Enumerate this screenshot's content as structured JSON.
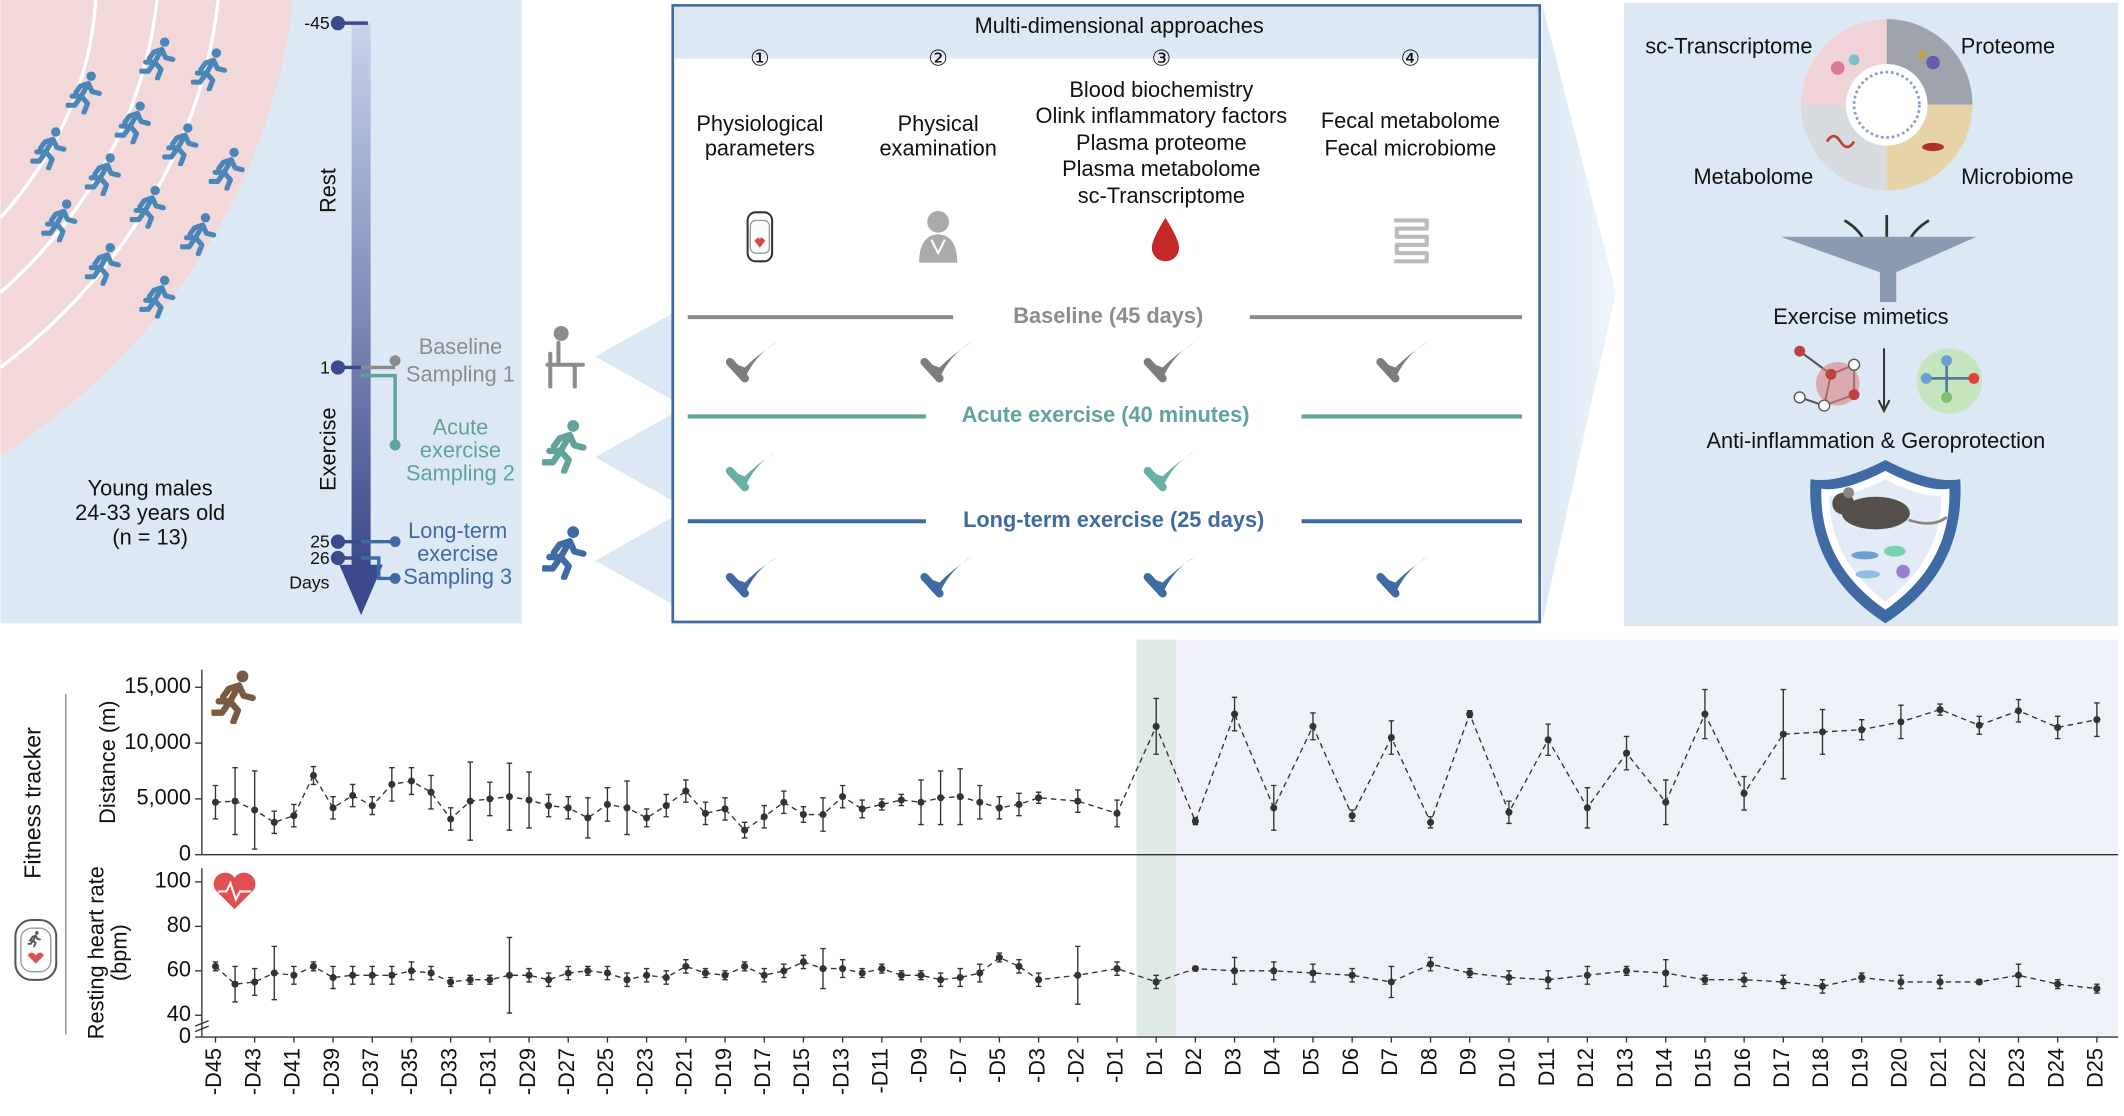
{
  "left_panel": {
    "lines": [
      "Young males",
      "24-33 years old",
      "(n = 13)"
    ]
  },
  "timeline": {
    "ticks": [
      "-45",
      "1",
      "25",
      "26"
    ],
    "unit": "Days",
    "rest": "Rest",
    "exercise": "Exercise",
    "samplings": [
      {
        "lines": [
          "Baseline",
          "Sampling 1"
        ]
      },
      {
        "lines": [
          "Acute",
          "exercise",
          "Sampling 2"
        ]
      },
      {
        "lines": [
          "Long-term",
          "exercise",
          "Sampling 3"
        ]
      }
    ]
  },
  "approaches": {
    "title": "Multi-dimensional approaches",
    "columns": [
      {
        "number": "①",
        "lines": [
          "Physiological",
          "parameters"
        ]
      },
      {
        "number": "②",
        "lines": [
          "Physical",
          "examination"
        ]
      },
      {
        "number": "③",
        "lines": [
          "Blood biochemistry",
          "Olink inflammatory factors",
          "Plasma proteome",
          "Plasma metabolome",
          "sc-Transcriptome"
        ]
      },
      {
        "number": "④",
        "lines": [
          "Fecal metabolome",
          "Fecal microbiome"
        ]
      }
    ],
    "phases": [
      "Baseline (45 days)",
      "Acute exercise (40 minutes)",
      "Long-term exercise (25 days)"
    ]
  },
  "right_panel": {
    "omics": [
      "sc-Transcriptome",
      "Proteome",
      "Metabolome",
      "Microbiome"
    ],
    "mimetics": "Exercise mimetics",
    "outcome": "Anti-inflammation & Geroprotection"
  },
  "fitness_tracker": {
    "label": "Fitness tracker"
  },
  "chart_data": [
    {
      "type": "line",
      "y_label": [
        "Distance (m)"
      ],
      "categories": [
        "-D45",
        null,
        "-D43",
        null,
        "-D41",
        null,
        "-D39",
        null,
        "-D37",
        null,
        "-D35",
        null,
        "-D33",
        null,
        "-D31",
        null,
        "-D29",
        null,
        "-D27",
        null,
        "-D25",
        null,
        "-D23",
        null,
        "-D21",
        null,
        "-D19",
        null,
        "-D17",
        null,
        "-D15",
        null,
        "-D13",
        null,
        "-D11",
        null,
        "-D9",
        null,
        "-D7",
        null,
        "-D5",
        null,
        "-D3",
        "-D2",
        "-D1",
        "D1",
        "D2",
        "D3",
        "D4",
        "D5",
        "D6",
        "D7",
        "D8",
        "D9",
        "D10",
        "D11",
        "D12",
        "D13",
        "D14",
        "D15",
        "D16",
        "D17",
        "D18",
        "D19",
        "D20",
        "D21",
        "D22",
        "D23",
        "D24",
        "D25"
      ],
      "series": [
        {
          "color": "#333333",
          "values": [
            4700,
            4800,
            4000,
            2900,
            3500,
            7100,
            4200,
            5300,
            4400,
            6300,
            6600,
            5600,
            3200,
            4800,
            5000,
            5200,
            4900,
            4400,
            4200,
            3300,
            4500,
            4200,
            3300,
            4400,
            5700,
            3700,
            4100,
            2200,
            3400,
            4700,
            3600,
            3600,
            5200,
            4100,
            4500,
            4900,
            4700,
            5100,
            5200,
            4700,
            4200,
            4500,
            5100,
            4800,
            3700,
            11500,
            3000,
            12600,
            4200,
            11500,
            3500,
            10500,
            2900,
            12600,
            3800,
            10300,
            4200,
            9100,
            4700,
            12600,
            5500,
            10800,
            11000,
            11200,
            11900,
            13000,
            11600,
            12900,
            11400,
            12100
          ],
          "errors": [
            1500,
            3000,
            3500,
            1000,
            1000,
            800,
            1000,
            1000,
            800,
            1500,
            1200,
            1500,
            1000,
            3500,
            1500,
            3000,
            2500,
            1000,
            1000,
            1800,
            1500,
            2400,
            800,
            1000,
            1000,
            1000,
            1000,
            700,
            1000,
            1000,
            700,
            1500,
            1000,
            800,
            500,
            500,
            2000,
            2400,
            2500,
            1500,
            1000,
            1000,
            500,
            1000,
            1200,
            2500,
            300,
            1500,
            2000,
            1200,
            500,
            1500,
            500,
            300,
            1000,
            1400,
            1800,
            1500,
            2000,
            2200,
            1500,
            4000,
            2000,
            900,
            1500,
            500,
            800,
            1000,
            1000,
            1500
          ]
        }
      ],
      "ylim": [
        0,
        15000
      ],
      "yticks": [
        0,
        {
          "value": 5000,
          "label": "5,000"
        },
        {
          "value": 10000,
          "label": "10,000"
        },
        {
          "value": 15000,
          "label": "15,000"
        }
      ]
    },
    {
      "type": "line",
      "y_label": [
        "Resting heart rate",
        "(bpm)"
      ],
      "categories": [
        "-D45",
        null,
        "-D43",
        null,
        "-D41",
        null,
        "-D39",
        null,
        "-D37",
        null,
        "-D35",
        null,
        "-D33",
        null,
        "-D31",
        null,
        "-D29",
        null,
        "-D27",
        null,
        "-D25",
        null,
        "-D23",
        null,
        "-D21",
        null,
        "-D19",
        null,
        "-D17",
        null,
        "-D15",
        null,
        "-D13",
        null,
        "-D11",
        null,
        "-D9",
        null,
        "-D7",
        null,
        "-D5",
        null,
        "-D3",
        "-D2",
        "-D1",
        "D1",
        "D2",
        "D3",
        "D4",
        "D5",
        "D6",
        "D7",
        "D8",
        "D9",
        "D10",
        "D11",
        "D12",
        "D13",
        "D14",
        "D15",
        "D16",
        "D17",
        "D18",
        "D19",
        "D20",
        "D21",
        "D22",
        "D23",
        "D24",
        "D25"
      ],
      "series": [
        {
          "color": "#333333",
          "values": [
            62,
            54,
            55,
            59,
            58,
            62,
            57,
            58,
            58,
            58,
            60,
            59,
            55,
            56,
            56,
            58,
            58,
            56,
            59,
            60,
            59,
            56,
            58,
            57,
            62,
            59,
            58,
            62,
            58,
            60,
            64,
            61,
            61,
            59,
            61,
            58,
            58,
            56,
            57,
            59,
            66,
            62,
            56,
            58,
            61,
            55,
            61,
            60,
            60,
            59,
            58,
            55,
            63,
            59,
            57,
            56,
            58,
            60,
            59,
            56,
            56,
            55,
            53,
            57,
            55,
            55,
            55,
            58,
            54,
            52
          ],
          "errors": [
            2,
            8,
            6,
            12,
            4,
            2,
            5,
            4,
            4,
            4,
            4,
            3,
            2,
            2,
            2,
            17,
            3,
            3,
            3,
            2,
            3,
            3,
            3,
            3,
            3,
            2,
            2,
            2,
            3,
            3,
            3,
            9,
            4,
            2,
            2,
            2,
            2,
            3,
            4,
            4,
            2,
            3,
            3,
            13,
            3,
            3,
            1,
            6,
            4,
            4,
            3,
            7,
            3,
            2,
            3,
            4,
            4,
            2,
            6,
            2,
            3,
            3,
            3,
            2,
            3,
            3,
            1,
            5,
            2,
            2
          ]
        }
      ],
      "ylim": [
        40,
        100
      ],
      "axis_break": true,
      "yticks": [
        0,
        40,
        60,
        80,
        100
      ]
    }
  ]
}
